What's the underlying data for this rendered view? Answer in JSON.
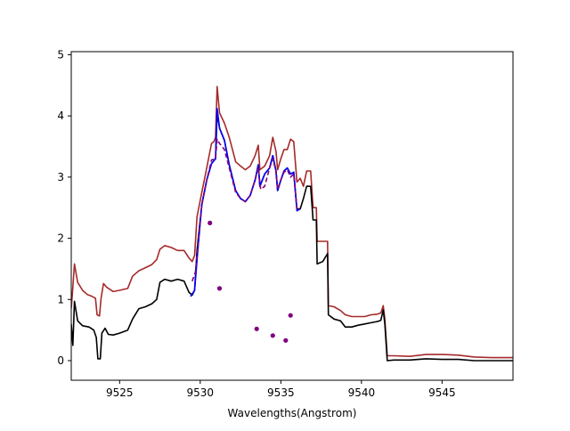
{
  "chart_data": {
    "type": "line",
    "xlabel": "Wavelengths(Angstrom)",
    "ylabel": "",
    "xlim": [
      9522.0,
      9549.4
    ],
    "ylim": [
      -0.32,
      5.05
    ],
    "xticks": [
      {
        "value": 9525,
        "label": "9525"
      },
      {
        "value": 9530,
        "label": "9530"
      },
      {
        "value": 9535,
        "label": "9535"
      },
      {
        "value": 9540,
        "label": "9540"
      },
      {
        "value": 9545,
        "label": "9545"
      }
    ],
    "yticks": [
      {
        "value": 0,
        "label": "0"
      },
      {
        "value": 1,
        "label": "1"
      },
      {
        "value": 2,
        "label": "2"
      },
      {
        "value": 3,
        "label": "3"
      },
      {
        "value": 4,
        "label": "4"
      },
      {
        "value": 5,
        "label": "5"
      }
    ],
    "series": [
      {
        "key": "upper",
        "color": "#a52a2a",
        "style": "solid",
        "points": [
          [
            9522.0,
            0.85
          ],
          [
            9522.1,
            1.2
          ],
          [
            9522.2,
            1.58
          ],
          [
            9522.4,
            1.28
          ],
          [
            9522.7,
            1.15
          ],
          [
            9523.0,
            1.08
          ],
          [
            9523.3,
            1.05
          ],
          [
            9523.5,
            1.02
          ],
          [
            9523.6,
            0.75
          ],
          [
            9523.75,
            0.73
          ],
          [
            9523.85,
            1.02
          ],
          [
            9524.0,
            1.26
          ],
          [
            9524.2,
            1.2
          ],
          [
            9524.6,
            1.13
          ],
          [
            9525.0,
            1.15
          ],
          [
            9525.5,
            1.18
          ],
          [
            9525.8,
            1.38
          ],
          [
            9526.2,
            1.47
          ],
          [
            9526.6,
            1.52
          ],
          [
            9527.0,
            1.57
          ],
          [
            9527.3,
            1.65
          ],
          [
            9527.5,
            1.82
          ],
          [
            9527.8,
            1.88
          ],
          [
            9528.2,
            1.85
          ],
          [
            9528.6,
            1.8
          ],
          [
            9529.0,
            1.8
          ],
          [
            9529.3,
            1.68
          ],
          [
            9529.5,
            1.62
          ],
          [
            9529.65,
            1.72
          ],
          [
            9529.8,
            2.35
          ],
          [
            9530.1,
            2.75
          ],
          [
            9530.4,
            3.15
          ],
          [
            9530.7,
            3.55
          ],
          [
            9530.85,
            3.58
          ],
          [
            9530.95,
            3.65
          ],
          [
            9531.05,
            4.48
          ],
          [
            9531.2,
            4.05
          ],
          [
            9531.5,
            3.88
          ],
          [
            9531.8,
            3.65
          ],
          [
            9532.2,
            3.25
          ],
          [
            9532.5,
            3.18
          ],
          [
            9532.8,
            3.12
          ],
          [
            9533.1,
            3.18
          ],
          [
            9533.4,
            3.35
          ],
          [
            9533.6,
            3.52
          ],
          [
            9533.7,
            3.12
          ],
          [
            9534.0,
            3.18
          ],
          [
            9534.3,
            3.35
          ],
          [
            9534.5,
            3.65
          ],
          [
            9534.7,
            3.42
          ],
          [
            9534.8,
            3.12
          ],
          [
            9535.0,
            3.3
          ],
          [
            9535.2,
            3.45
          ],
          [
            9535.4,
            3.45
          ],
          [
            9535.6,
            3.62
          ],
          [
            9535.8,
            3.58
          ],
          [
            9536.0,
            2.92
          ],
          [
            9536.2,
            2.98
          ],
          [
            9536.4,
            2.85
          ],
          [
            9536.6,
            3.1
          ],
          [
            9536.85,
            3.1
          ],
          [
            9537.0,
            2.5
          ],
          [
            9537.2,
            2.5
          ],
          [
            9537.25,
            1.95
          ],
          [
            9537.9,
            1.95
          ],
          [
            9537.95,
            0.9
          ],
          [
            9538.3,
            0.88
          ],
          [
            9538.7,
            0.82
          ],
          [
            9539.0,
            0.75
          ],
          [
            9539.4,
            0.72
          ],
          [
            9539.8,
            0.72
          ],
          [
            9540.2,
            0.72
          ],
          [
            9540.6,
            0.75
          ],
          [
            9541.0,
            0.76
          ],
          [
            9541.2,
            0.78
          ],
          [
            9541.35,
            0.9
          ],
          [
            9541.45,
            0.68
          ],
          [
            9541.6,
            0.08
          ],
          [
            9542.0,
            0.08
          ],
          [
            9543.0,
            0.07
          ],
          [
            9544.0,
            0.1
          ],
          [
            9545.0,
            0.1
          ],
          [
            9546.0,
            0.09
          ],
          [
            9547.0,
            0.06
          ],
          [
            9548.0,
            0.05
          ],
          [
            9549.4,
            0.05
          ]
        ]
      },
      {
        "key": "lower",
        "color": "#000000",
        "style": "solid",
        "points": [
          [
            9522.0,
            0.6
          ],
          [
            9522.1,
            0.25
          ],
          [
            9522.2,
            0.97
          ],
          [
            9522.4,
            0.65
          ],
          [
            9522.7,
            0.57
          ],
          [
            9523.1,
            0.55
          ],
          [
            9523.4,
            0.5
          ],
          [
            9523.55,
            0.38
          ],
          [
            9523.65,
            0.03
          ],
          [
            9523.8,
            0.03
          ],
          [
            9523.9,
            0.45
          ],
          [
            9524.1,
            0.53
          ],
          [
            9524.3,
            0.43
          ],
          [
            9524.6,
            0.42
          ],
          [
            9525.0,
            0.45
          ],
          [
            9525.5,
            0.5
          ],
          [
            9525.8,
            0.68
          ],
          [
            9526.2,
            0.85
          ],
          [
            9526.6,
            0.88
          ],
          [
            9527.0,
            0.93
          ],
          [
            9527.3,
            1.0
          ],
          [
            9527.5,
            1.28
          ],
          [
            9527.8,
            1.33
          ],
          [
            9528.2,
            1.3
          ],
          [
            9528.6,
            1.33
          ],
          [
            9529.0,
            1.3
          ],
          [
            9529.3,
            1.12
          ],
          [
            9529.5,
            1.07
          ],
          [
            9529.65,
            1.15
          ],
          [
            9529.8,
            1.8
          ],
          [
            9530.1,
            2.55
          ],
          [
            9530.4,
            2.95
          ],
          [
            9530.7,
            3.22
          ],
          [
            9530.95,
            3.3
          ],
          [
            9531.05,
            4.05
          ],
          [
            9531.2,
            3.8
          ],
          [
            9531.5,
            3.6
          ],
          [
            9531.8,
            3.2
          ],
          [
            9532.2,
            2.78
          ],
          [
            9532.5,
            2.65
          ],
          [
            9532.8,
            2.6
          ],
          [
            9533.1,
            2.7
          ],
          [
            9533.4,
            2.95
          ],
          [
            9533.6,
            3.2
          ],
          [
            9533.7,
            2.85
          ],
          [
            9534.0,
            3.05
          ],
          [
            9534.3,
            3.15
          ],
          [
            9534.5,
            3.35
          ],
          [
            9534.7,
            3.1
          ],
          [
            9534.8,
            2.78
          ],
          [
            9535.0,
            2.95
          ],
          [
            9535.2,
            3.1
          ],
          [
            9535.4,
            3.15
          ],
          [
            9535.6,
            3.05
          ],
          [
            9535.8,
            3.08
          ],
          [
            9536.0,
            2.48
          ],
          [
            9536.2,
            2.48
          ],
          [
            9536.4,
            2.65
          ],
          [
            9536.6,
            2.85
          ],
          [
            9536.85,
            2.85
          ],
          [
            9537.0,
            2.3
          ],
          [
            9537.2,
            2.3
          ],
          [
            9537.25,
            1.58
          ],
          [
            9537.6,
            1.62
          ],
          [
            9537.9,
            1.75
          ],
          [
            9537.95,
            0.75
          ],
          [
            9538.3,
            0.68
          ],
          [
            9538.7,
            0.65
          ],
          [
            9539.0,
            0.55
          ],
          [
            9539.4,
            0.55
          ],
          [
            9539.8,
            0.58
          ],
          [
            9540.2,
            0.6
          ],
          [
            9540.6,
            0.62
          ],
          [
            9541.0,
            0.64
          ],
          [
            9541.2,
            0.66
          ],
          [
            9541.35,
            0.83
          ],
          [
            9541.45,
            0.6
          ],
          [
            9541.6,
            0.0
          ],
          [
            9542.0,
            0.01
          ],
          [
            9543.0,
            0.01
          ],
          [
            9544.0,
            0.03
          ],
          [
            9545.0,
            0.02
          ],
          [
            9546.0,
            0.02
          ],
          [
            9547.0,
            0.0
          ],
          [
            9548.0,
            0.0
          ],
          [
            9549.4,
            0.0
          ]
        ]
      },
      {
        "key": "model",
        "color": "#0000ff",
        "style": "solid",
        "points": [
          [
            9529.4,
            1.05
          ],
          [
            9529.65,
            1.15
          ],
          [
            9529.85,
            1.8
          ],
          [
            9530.1,
            2.55
          ],
          [
            9530.4,
            2.95
          ],
          [
            9530.7,
            3.22
          ],
          [
            9530.95,
            3.3
          ],
          [
            9531.05,
            4.12
          ],
          [
            9531.2,
            3.8
          ],
          [
            9531.5,
            3.6
          ],
          [
            9531.8,
            3.2
          ],
          [
            9532.2,
            2.78
          ],
          [
            9532.5,
            2.65
          ],
          [
            9532.8,
            2.6
          ],
          [
            9533.1,
            2.7
          ],
          [
            9533.4,
            2.95
          ],
          [
            9533.6,
            3.2
          ],
          [
            9533.7,
            2.85
          ],
          [
            9534.0,
            3.05
          ],
          [
            9534.3,
            3.15
          ],
          [
            9534.5,
            3.35
          ],
          [
            9534.7,
            3.1
          ],
          [
            9534.8,
            2.78
          ],
          [
            9535.0,
            2.95
          ],
          [
            9535.2,
            3.1
          ],
          [
            9535.4,
            3.15
          ],
          [
            9535.6,
            3.05
          ],
          [
            9535.8,
            3.08
          ],
          [
            9536.0,
            2.45
          ],
          [
            9536.2,
            2.48
          ]
        ]
      },
      {
        "key": "fit",
        "color": "#800080",
        "style": "dashed",
        "points": [
          [
            9529.5,
            1.3
          ],
          [
            9529.7,
            1.45
          ],
          [
            9529.85,
            1.85
          ],
          [
            9530.1,
            2.55
          ],
          [
            9530.4,
            2.95
          ],
          [
            9530.7,
            3.28
          ],
          [
            9530.95,
            3.3
          ],
          [
            9531.05,
            3.62
          ],
          [
            9531.2,
            3.55
          ],
          [
            9531.5,
            3.45
          ],
          [
            9531.8,
            3.15
          ],
          [
            9532.2,
            2.75
          ],
          [
            9532.5,
            2.65
          ],
          [
            9532.8,
            2.6
          ],
          [
            9533.1,
            2.7
          ],
          [
            9533.4,
            2.95
          ],
          [
            9533.6,
            3.15
          ],
          [
            9533.75,
            2.8
          ],
          [
            9534.0,
            2.85
          ],
          [
            9534.3,
            3.15
          ],
          [
            9534.5,
            3.3
          ],
          [
            9534.7,
            3.1
          ],
          [
            9534.8,
            2.8
          ],
          [
            9535.0,
            2.95
          ],
          [
            9535.2,
            3.08
          ],
          [
            9535.4,
            3.12
          ],
          [
            9535.6,
            3.0
          ],
          [
            9535.8,
            3.05
          ],
          [
            9536.0,
            2.48
          ],
          [
            9536.2,
            2.5
          ]
        ]
      }
    ],
    "scatter": {
      "color": "#800080",
      "points": [
        [
          9530.6,
          2.25
        ],
        [
          9531.2,
          1.18
        ],
        [
          9533.5,
          0.52
        ],
        [
          9534.5,
          0.41
        ],
        [
          9535.3,
          0.33
        ],
        [
          9535.6,
          0.74
        ]
      ]
    }
  }
}
